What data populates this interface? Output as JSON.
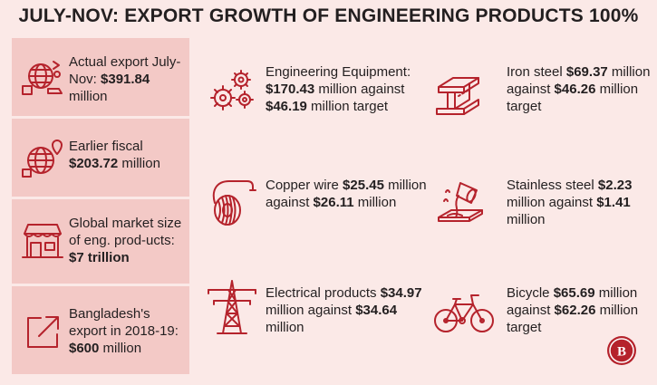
{
  "title": "JULY-NOV: EXPORT GROWTH OF ENGINEERING PRODUCTS 100%",
  "sidebar": [
    {
      "icon": "export-globe-icon",
      "pre": "Actual export July-Nov: ",
      "bold": "$391.84",
      "post": " million"
    },
    {
      "icon": "globe-location-icon",
      "pre": "Earlier fiscal ",
      "bold": "$203.72",
      "post": " million"
    },
    {
      "icon": "market-store-icon",
      "pre": "Global market size of eng. prod-ucts: ",
      "bold": "$7 trillion",
      "post": ""
    },
    {
      "icon": "export-arrow-icon",
      "pre": "Bangladesh's export in 2018-19: ",
      "bold": "$600",
      "post": " million"
    }
  ],
  "cards": [
    {
      "icon": "gears-icon",
      "label": "Engineering Equipment:",
      "v1": "$170.43",
      "mid": " million against ",
      "v2": "$46.19",
      "tail": " million target"
    },
    {
      "icon": "iron-beam-icon",
      "label": "Iron steel ",
      "v1": "$69.37",
      "mid": " million against ",
      "v2": "$46.26",
      "tail": " million target"
    },
    {
      "icon": "copper-wire-icon",
      "label": "Copper wire ",
      "v1": "$25.45",
      "mid": " million against ",
      "v2": "$26.11",
      "tail": " million"
    },
    {
      "icon": "molten-steel-icon",
      "label": "Stainless steel ",
      "v1": "$2.23",
      "mid": " million against ",
      "v2": "$1.41",
      "tail": " million"
    },
    {
      "icon": "power-tower-icon",
      "label": "Electrical products ",
      "v1": "$34.97",
      "mid": " million against ",
      "v2": "$34.64",
      "tail": " million"
    },
    {
      "icon": "bicycle-icon",
      "label": "Bicycle ",
      "v1": "$65.69",
      "mid": " million against ",
      "v2": "$62.26",
      "tail": " million target"
    }
  ],
  "logo_text": "B",
  "colors": {
    "background": "#fbe9e7",
    "sidebar": "#f3c9c6",
    "icon": "#b5232c",
    "text": "#231f20"
  }
}
